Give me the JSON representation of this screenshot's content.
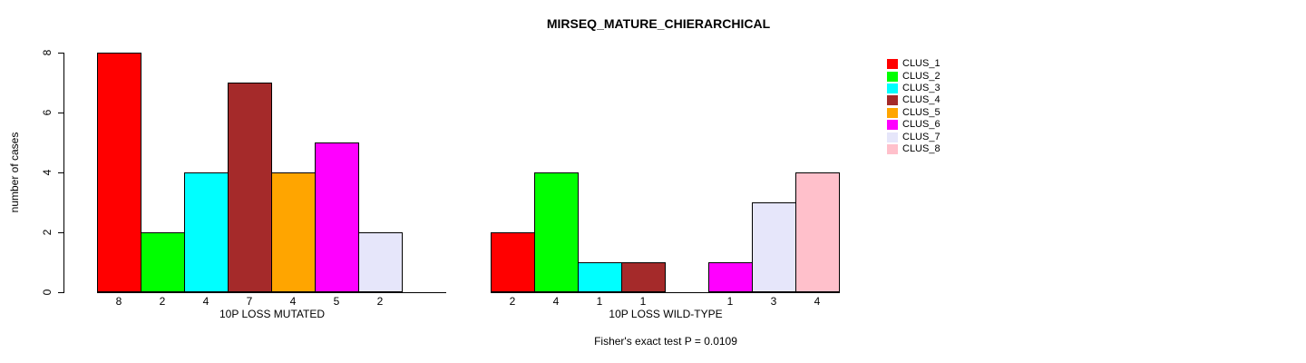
{
  "chart_data": {
    "type": "bar",
    "title": "MIRSEQ_MATURE_CHIERARCHICAL",
    "ylabel": "number of cases",
    "ylim": [
      0,
      8
    ],
    "yticks": [
      0,
      2,
      4,
      6,
      8
    ],
    "grid": false,
    "background": "#FFFFFF",
    "bar_border_color": "#000000",
    "annotation": "Fisher's exact test P = 0.0109",
    "legend": {
      "position": "right",
      "entries": [
        {
          "label": "CLUS_1",
          "color": "#FF0000"
        },
        {
          "label": "CLUS_2",
          "color": "#00FF00"
        },
        {
          "label": "CLUS_3",
          "color": "#00FFFF"
        },
        {
          "label": "CLUS_4",
          "color": "#A52A2A"
        },
        {
          "label": "CLUS_5",
          "color": "#FFA500"
        },
        {
          "label": "CLUS_6",
          "color": "#FF00FF"
        },
        {
          "label": "CLUS_7",
          "color": "#E6E6FA"
        },
        {
          "label": "CLUS_8",
          "color": "#FFC0CB"
        }
      ]
    },
    "categories": [
      "CLUS_1",
      "CLUS_2",
      "CLUS_3",
      "CLUS_4",
      "CLUS_5",
      "CLUS_6",
      "CLUS_7",
      "CLUS_8"
    ],
    "groups": [
      {
        "xlabel": "10P LOSS MUTATED",
        "values": [
          8,
          2,
          4,
          7,
          4,
          5,
          2,
          0
        ],
        "bar_labels": [
          "8",
          "2",
          "4",
          "7",
          "4",
          "5",
          "2",
          ""
        ]
      },
      {
        "xlabel": "10P LOSS WILD-TYPE",
        "values": [
          2,
          4,
          1,
          1,
          0,
          1,
          3,
          4
        ],
        "bar_labels": [
          "2",
          "4",
          "1",
          "1",
          "",
          "1",
          "3",
          "4"
        ]
      }
    ]
  }
}
